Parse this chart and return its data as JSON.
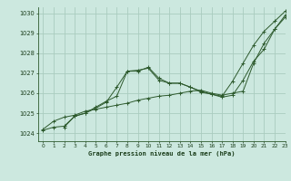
{
  "title": "Graphe pression niveau de la mer (hPa)",
  "bg_color": "#cce8df",
  "grid_color": "#aaccbf",
  "line_color": "#2d5a2d",
  "text_color": "#1a3d1a",
  "xlim": [
    -0.5,
    23
  ],
  "ylim": [
    1023.6,
    1030.3
  ],
  "yticks": [
    1024,
    1025,
    1026,
    1027,
    1028,
    1029,
    1030
  ],
  "xticks": [
    0,
    1,
    2,
    3,
    4,
    5,
    6,
    7,
    8,
    9,
    10,
    11,
    12,
    13,
    14,
    15,
    16,
    17,
    18,
    19,
    20,
    21,
    22,
    23
  ],
  "series": [
    {
      "x": [
        0,
        1,
        2,
        3,
        4,
        5,
        6,
        7,
        8,
        9,
        10,
        11,
        12,
        13,
        14,
        15,
        16,
        17,
        18,
        19,
        20,
        21,
        22,
        23
      ],
      "y": [
        1024.2,
        1024.6,
        1024.8,
        1024.9,
        1025.1,
        1025.2,
        1025.3,
        1025.4,
        1025.5,
        1025.65,
        1025.75,
        1025.85,
        1025.9,
        1026.0,
        1026.1,
        1026.15,
        1026.0,
        1025.9,
        1026.0,
        1026.1,
        1027.5,
        1028.5,
        1029.2,
        1029.8
      ]
    },
    {
      "x": [
        0,
        1,
        2,
        3,
        4,
        5,
        6,
        7,
        8,
        9,
        10,
        11,
        12,
        13,
        14,
        15,
        16,
        17,
        18,
        19,
        20,
        21,
        22,
        23
      ],
      "y": [
        1024.15,
        1024.3,
        1024.35,
        1024.85,
        1025.0,
        1025.25,
        1025.55,
        1026.3,
        1027.1,
        1027.15,
        1027.25,
        1026.65,
        1026.5,
        1026.5,
        1026.3,
        1026.1,
        1025.95,
        1025.85,
        1026.6,
        1027.5,
        1028.4,
        1029.1,
        1029.6,
        1030.1
      ]
    },
    {
      "x": [
        2,
        3,
        4,
        5,
        6,
        7,
        8,
        9,
        10,
        11,
        12,
        13,
        14,
        15,
        16,
        17,
        18,
        19,
        20,
        21,
        22,
        23
      ],
      "y": [
        1024.3,
        1024.85,
        1025.0,
        1025.3,
        1025.6,
        1025.85,
        1027.1,
        1027.1,
        1027.3,
        1026.75,
        1026.5,
        1026.5,
        1026.3,
        1026.05,
        1025.95,
        1025.8,
        1025.9,
        1026.65,
        1027.6,
        1028.2,
        1029.2,
        1029.9
      ]
    }
  ]
}
